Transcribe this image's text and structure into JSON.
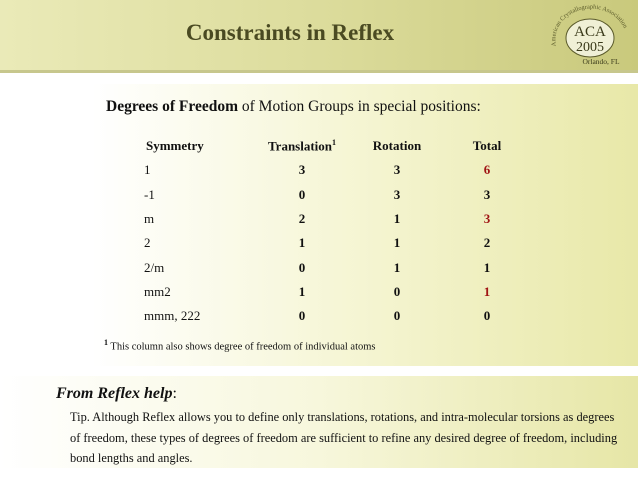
{
  "title": "Constraints in Reflex",
  "logo": {
    "arc_text": "American Crystallographic Association",
    "line1": "ACA",
    "line2": "2005",
    "location": "Orlando, FL"
  },
  "heading": {
    "bold": "Degrees of Freedom",
    "rest": " of Motion Groups in special positions:"
  },
  "table": {
    "headers": {
      "symmetry": "Symmetry",
      "translation": "Translation",
      "translation_sup": "1",
      "rotation": "Rotation",
      "total": "Total"
    },
    "rows": [
      {
        "symmetry": "1",
        "translation": "3",
        "rotation": "3",
        "total": "6"
      },
      {
        "symmetry": "-1",
        "translation": "0",
        "rotation": "3",
        "total": "3"
      },
      {
        "symmetry": "m",
        "translation": "2",
        "rotation": "1",
        "total": "3"
      },
      {
        "symmetry": "2",
        "translation": "1",
        "rotation": "1",
        "total": "2"
      },
      {
        "symmetry": "2/m",
        "translation": "0",
        "rotation": "1",
        "total": "1"
      },
      {
        "symmetry": "mm2",
        "translation": "1",
        "rotation": "0",
        "total": "1"
      },
      {
        "symmetry": "mmm, 222",
        "translation": "0",
        "rotation": "0",
        "total": "0"
      }
    ]
  },
  "footnote": {
    "mark": "1",
    "text": " This column also shows degree of freedom of individual atoms"
  },
  "help": {
    "label": "From Reflex help",
    "colon": ":",
    "tip": "Tip. Although Reflex allows you to define only translations, rotations, and intra-molecular torsions as degrees of freedom, these types of degrees of freedom are sufficient to refine any desired degree of freedom, including bond lengths and angles."
  },
  "colors": {
    "highlight_total": "#a01414",
    "title": "#4a4a22"
  }
}
